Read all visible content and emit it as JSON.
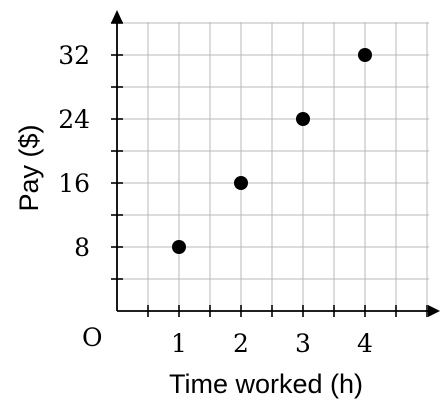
{
  "chart_data": {
    "type": "scatter",
    "title": "",
    "xlabel": "Time worked (h)",
    "ylabel": "Pay ($)",
    "origin_label": "O",
    "xlim": [
      0,
      5
    ],
    "ylim": [
      0,
      36
    ],
    "x_ticks": [
      1,
      2,
      3,
      4
    ],
    "y_ticks": [
      8,
      16,
      24,
      32
    ],
    "grid": true,
    "points": [
      {
        "x": 1,
        "y": 8
      },
      {
        "x": 2,
        "y": 16
      },
      {
        "x": 3,
        "y": 24
      },
      {
        "x": 4,
        "y": 32
      }
    ]
  }
}
